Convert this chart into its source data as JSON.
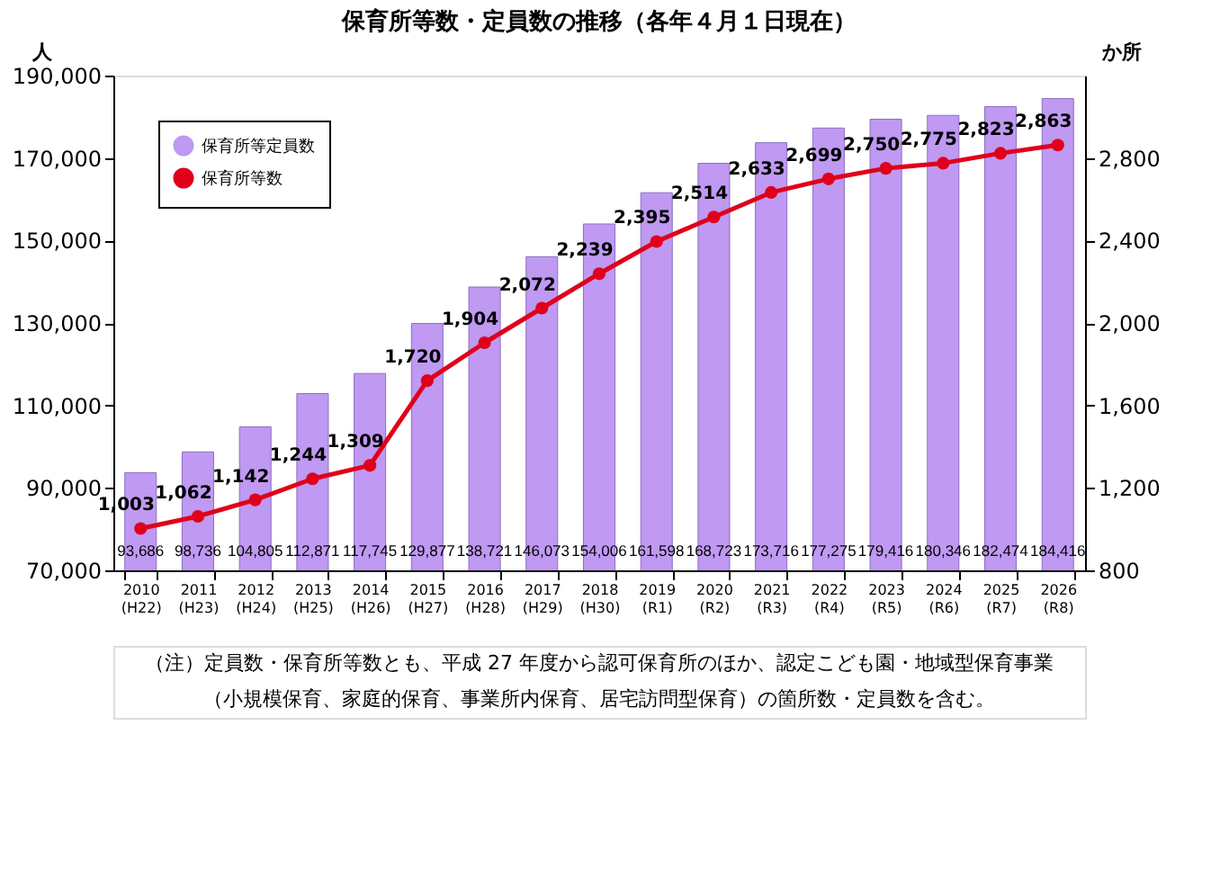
{
  "chart_data": {
    "type": "bar",
    "title": "保育所等数・定員数の推移（各年４月１日現在）",
    "ylabel": "人",
    "y2label": "か所",
    "categories": [
      "2010 (H22)",
      "2011 (H23)",
      "2012 (H24)",
      "2013 (H25)",
      "2014 (H26)",
      "2015 (H27)",
      "2016 (H28)",
      "2017 (H29)",
      "2018 (H30)",
      "2019 (R1)",
      "2020 (R2)",
      "2021 (R3)",
      "2022 (R4)",
      "2023 (R5)",
      "2024 (R6)",
      "2025 (R7)",
      "2026 (R8)"
    ],
    "series": [
      {
        "name": "保育所等定員数",
        "color": "#bf99f2",
        "values": [
          93686,
          98736,
          104805,
          112871,
          117745,
          129877,
          138721,
          146073,
          154006,
          161598,
          168723,
          173716,
          177275,
          179416,
          180346,
          182474,
          184416
        ],
        "value_labels": [
          "93,686",
          "98,736",
          "104,805",
          "112,871",
          "117,745",
          "129,877",
          "138,721",
          "146,073",
          "154,006",
          "161,598",
          "168,723",
          "173,716",
          "177,275",
          "179,416",
          "180,346",
          "182,474",
          "184,416"
        ]
      },
      {
        "name": "保育所等数",
        "type": "line",
        "axis": "y2",
        "color": "#e0001b",
        "values": [
          1003,
          1062,
          1142,
          1244,
          1309,
          1720,
          1904,
          2072,
          2239,
          2395,
          2514,
          2633,
          2699,
          2750,
          2775,
          2823,
          2863
        ],
        "value_labels": [
          "1,003",
          "1,062",
          "1,142",
          "1,244",
          "1,309",
          "1,720",
          "1,904",
          "2,072",
          "2,239",
          "2,395",
          "2,514",
          "2,633",
          "2,699",
          "2,750",
          "2,775",
          "2,823",
          "2,863"
        ]
      }
    ],
    "ylim": [
      70000,
      190000
    ],
    "yticks": [
      {
        "value": 70000,
        "label": "70,000"
      },
      {
        "value": 90000,
        "label": "90,000"
      },
      {
        "value": 110000,
        "label": "110,000"
      },
      {
        "value": 130000,
        "label": "130,000"
      },
      {
        "value": 150000,
        "label": "150,000"
      },
      {
        "value": 170000,
        "label": "170,000"
      },
      {
        "value": 190000,
        "label": "190,000"
      }
    ],
    "y2lim": [
      800,
      3200
    ],
    "y2ticks": [
      {
        "value": 800,
        "label": "800"
      },
      {
        "value": 1200,
        "label": "1,200"
      },
      {
        "value": 1600,
        "label": "1,600"
      },
      {
        "value": 2000,
        "label": "2,000"
      },
      {
        "value": 2400,
        "label": "2,400"
      },
      {
        "value": 2800,
        "label": "2,800"
      }
    ],
    "marker": "circle",
    "grid": false,
    "legend": "top left",
    "annotations": [
      "（注）定員数・保育所等数とも、平成 27 年度から認可保育所のほか、認定こども園・地域型保育事業",
      "（小規模保育、家庭的保育、事業所内保育、居宅訪問型保育）の箇所数・定員数を含む。"
    ]
  }
}
